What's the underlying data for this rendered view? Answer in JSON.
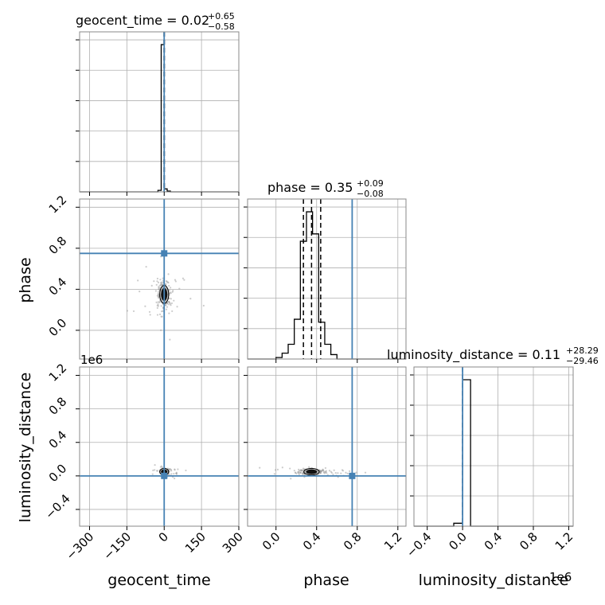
{
  "figure": {
    "type": "corner",
    "parameters": [
      "geocent_time",
      "phase",
      "luminosity_distance"
    ],
    "axis_labels": {
      "geocent_time": "geocent_time",
      "phase": "phase",
      "luminosity_distance": "luminosity_distance"
    },
    "titles": [
      {
        "param": "geocent_time",
        "base": "geocent_time = 0.02",
        "sup": "+0.65",
        "sub": "−0.58"
      },
      {
        "param": "phase",
        "base": "phase = 0.35",
        "sup": "+0.09",
        "sub": "−0.08"
      },
      {
        "param": "luminosity_distance",
        "base": "luminosity_distance = 0.11",
        "sup": "+28.29",
        "sub": "−29.46"
      }
    ],
    "offset_labels": {
      "luminosity_distance_y": "1e6",
      "luminosity_distance_x": "1e6"
    },
    "truth_color": "#4682b4",
    "hist_color": "#000000",
    "grid": true
  },
  "chart_data": [
    {
      "type": "histogram",
      "panel": "geocent_time-marginal",
      "x_param": "geocent_time",
      "xlim": [
        -340,
        300
      ],
      "x_ticks": [
        -300,
        -150,
        0,
        150,
        300
      ],
      "x_tick_labels": [
        "−300",
        "−150",
        "0",
        "150",
        "300"
      ],
      "bin_edges": [
        -25,
        -12,
        0,
        12,
        25,
        38
      ],
      "counts": [
        0.01,
        1.0,
        0.02,
        0.005,
        0.0
      ],
      "quantiles": [
        -0.56,
        0.02,
        0.67
      ],
      "truth": 0
    },
    {
      "type": "histogram",
      "panel": "phase-marginal",
      "x_param": "phase",
      "xlim": [
        -0.28,
        1.28
      ],
      "x_ticks": [
        0.0,
        0.4,
        0.8,
        1.2
      ],
      "x_tick_labels": [
        "0.0",
        "0.4",
        "0.8",
        "1.2"
      ],
      "bin_edges": [
        0.0,
        0.06,
        0.12,
        0.18,
        0.24,
        0.3,
        0.36,
        0.42,
        0.48,
        0.54,
        0.6
      ],
      "counts": [
        0.01,
        0.04,
        0.1,
        0.27,
        0.8,
        1.0,
        0.85,
        0.25,
        0.1,
        0.03
      ],
      "quantiles": [
        0.27,
        0.35,
        0.44
      ],
      "truth": 0.75
    },
    {
      "type": "histogram",
      "panel": "luminosity_distance-marginal",
      "x_param": "luminosity_distance",
      "x_scale": 1000000,
      "xlim": [
        -0.55,
        1.25
      ],
      "x_ticks": [
        -0.4,
        0.0,
        0.4,
        0.8,
        1.2
      ],
      "x_tick_labels": [
        "−0.4",
        "0.0",
        "0.4",
        "0.8",
        "1.2"
      ],
      "bin_edges": [
        -0.1,
        -0.0,
        0.09
      ],
      "counts": [
        0.02,
        1.0
      ],
      "quantiles": [
        0.0
      ],
      "truth": 0.0
    },
    {
      "type": "scatter",
      "panel": "phase-vs-geocent_time",
      "x_param": "geocent_time",
      "y_param": "phase",
      "xlim": [
        -340,
        300
      ],
      "ylim": [
        -0.28,
        1.28
      ],
      "y_ticks": [
        0.0,
        0.4,
        0.8,
        1.2
      ],
      "y_tick_labels": [
        "0.0",
        "0.4",
        "0.8",
        "1.2"
      ],
      "center": [
        0,
        0.35
      ],
      "spread": [
        14,
        0.07
      ],
      "truth": [
        0,
        0.75
      ]
    },
    {
      "type": "scatter",
      "panel": "luminosity_distance-vs-geocent_time",
      "x_param": "geocent_time",
      "y_param": "luminosity_distance",
      "y_scale": 1000000,
      "xlim": [
        -340,
        300
      ],
      "ylim": [
        -0.6,
        1.3
      ],
      "y_ticks": [
        -0.4,
        0.0,
        0.4,
        0.8,
        1.2
      ],
      "y_tick_labels": [
        "−0.4",
        "0.0",
        "0.4",
        "0.8",
        "1.2"
      ],
      "center": [
        0,
        0.05
      ],
      "spread": [
        8,
        0.015
      ],
      "truth": [
        0,
        0.0
      ]
    },
    {
      "type": "scatter",
      "panel": "luminosity_distance-vs-phase",
      "x_param": "phase",
      "y_param": "luminosity_distance",
      "y_scale": 1000000,
      "xlim": [
        -0.28,
        1.28
      ],
      "ylim": [
        -0.6,
        1.3
      ],
      "center": [
        0.35,
        0.05
      ],
      "spread": [
        0.06,
        0.015
      ],
      "truth": [
        0.75,
        0.0
      ]
    }
  ]
}
